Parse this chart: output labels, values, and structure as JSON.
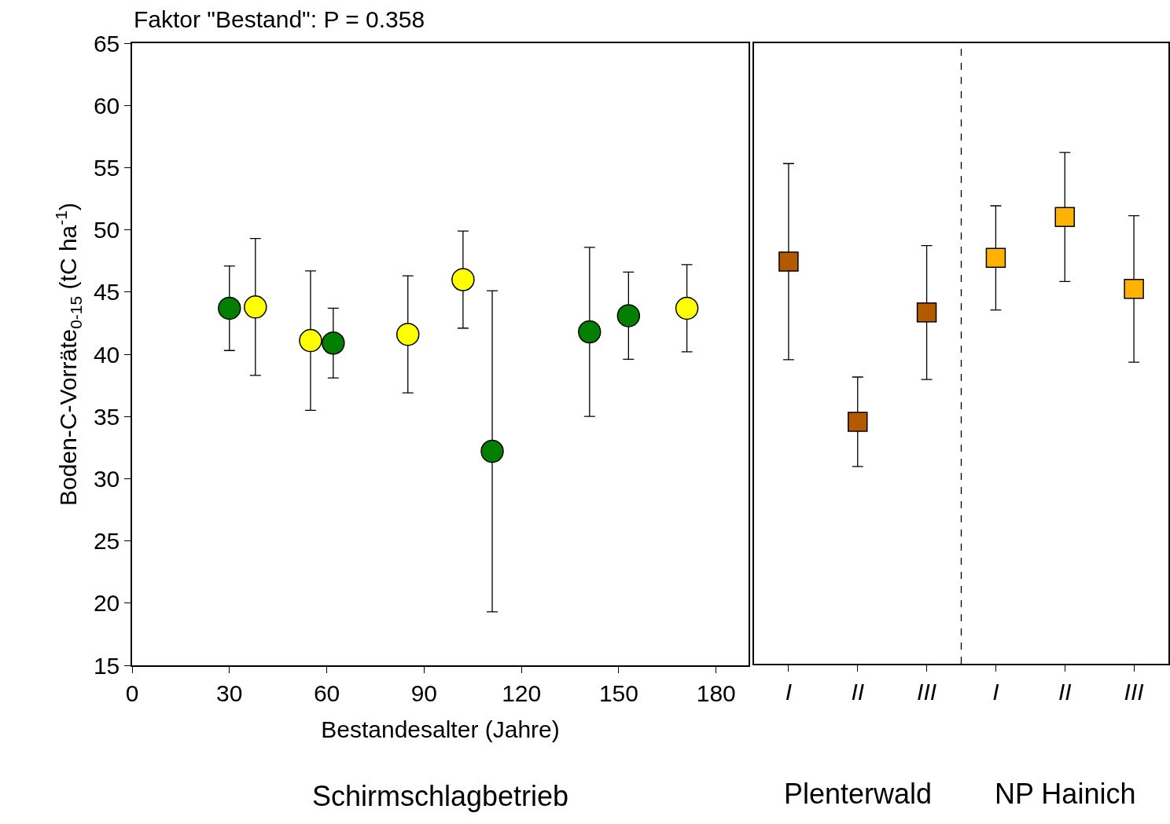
{
  "chart_data": [
    {
      "type": "scatter",
      "title": "Faktor \"Bestand\": P = 0.358",
      "xlabel": "Bestandesalter (Jahre)",
      "ylabel": "Boden-C-Vorräte$_{0-15}$ (tC ha$^{-1}$)",
      "annotations": [
        "Schirmschlagbetrieb"
      ],
      "marker": "circle",
      "xlim": [
        0,
        190
      ],
      "xticks": [
        0,
        30,
        60,
        90,
        120,
        150,
        180
      ],
      "ylim": [
        15,
        65
      ],
      "yticks": [
        15,
        20,
        25,
        30,
        35,
        40,
        45,
        50,
        55,
        60,
        65
      ],
      "series": [
        {
          "color": "#007f00",
          "x": [
            30,
            62,
            111,
            141,
            153
          ],
          "values": [
            43.7,
            40.9,
            32.2,
            41.8,
            43.1
          ],
          "errors": [
            3.4,
            2.8,
            12.9,
            6.8,
            3.5
          ]
        },
        {
          "color": "#ffff00",
          "x": [
            38,
            55,
            85,
            102,
            171
          ],
          "values": [
            43.8,
            41.1,
            41.6,
            46.0,
            43.7
          ],
          "errors": [
            5.5,
            5.6,
            4.7,
            3.9,
            3.5
          ]
        }
      ]
    },
    {
      "type": "scatter",
      "categories": [
        "I",
        "II",
        "III",
        "I",
        "II",
        "III"
      ],
      "ylim": [
        15,
        65
      ],
      "tick_labels": "x",
      "marker": "square",
      "annotations": [
        "Plenterwald",
        "NP Hainich"
      ],
      "series": [
        {
          "color": "#b35900",
          "values": [
            47.4,
            34.5,
            43.3,
            null,
            null,
            null
          ],
          "errors": [
            7.9,
            3.6,
            5.4,
            null,
            null,
            null
          ]
        },
        {
          "color": "#ffb300",
          "values": [
            null,
            null,
            null,
            47.7,
            51.0,
            45.2
          ],
          "errors": [
            null,
            null,
            null,
            4.2,
            5.2,
            5.9
          ]
        }
      ]
    }
  ]
}
